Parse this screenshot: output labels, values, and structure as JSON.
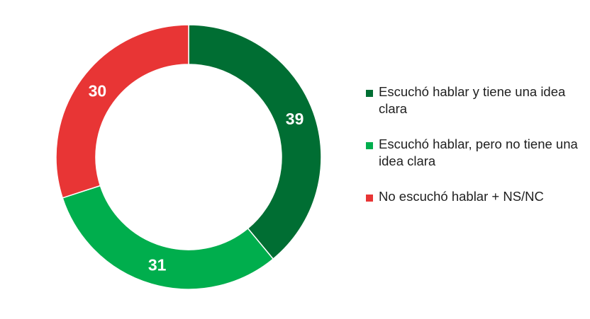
{
  "chart_data": {
    "type": "pie",
    "donut": true,
    "categories": [
      "Escuchó hablar y tiene una idea clara",
      "Escuchó hablar, pero no tiene una idea clara",
      "No escuchó hablar + NS/NC"
    ],
    "values": [
      39,
      31,
      30
    ],
    "data_labels": [
      "39",
      "31",
      "30"
    ],
    "colors": [
      "#006E33",
      "#00AE4D",
      "#E83535"
    ],
    "legend_position": "right"
  }
}
